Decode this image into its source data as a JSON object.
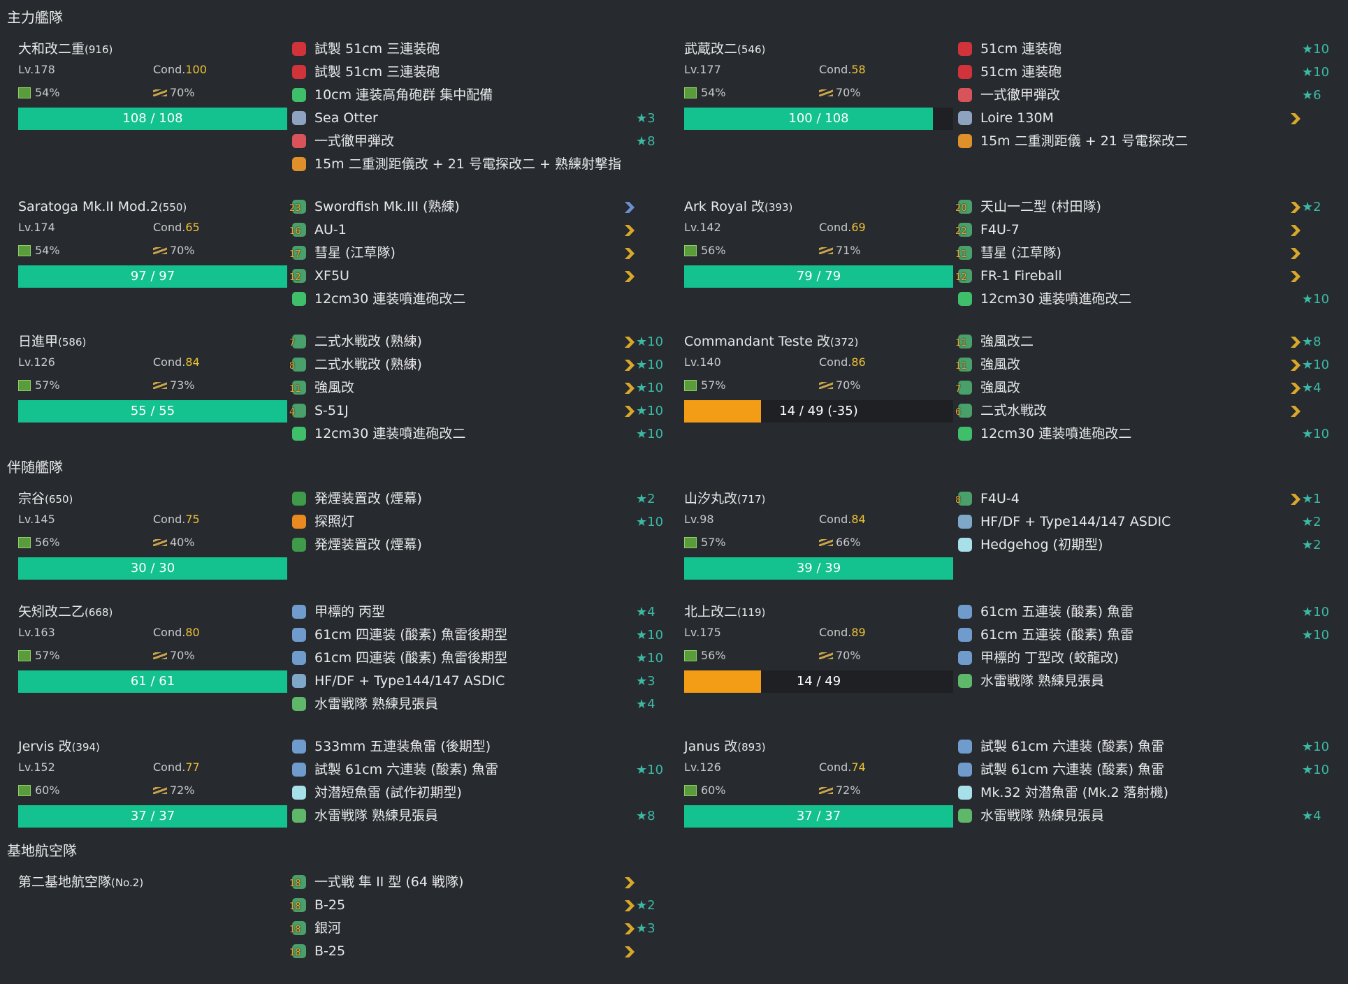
{
  "labels": {
    "cond": "Cond."
  },
  "sections": [
    {
      "title": "主力艦隊",
      "rows": [
        [
          {
            "name": "大和改二重",
            "id": "(916)",
            "lv": "Lv.178",
            "cond": 100,
            "fuel": "54%",
            "ammo": "70%",
            "hp": "108 / 108",
            "hp_now": 108,
            "hp_max": 108,
            "equips": [
              {
                "name": "試製 51cm 三連装砲",
                "icon_color": "#d0343a"
              },
              {
                "name": "試製 51cm 三連装砲",
                "icon_color": "#d0343a"
              },
              {
                "name": "10cm 連装高角砲群 集中配備",
                "icon_color": "#3fbf6a"
              },
              {
                "name": "Sea Otter",
                "star": "★3",
                "icon_color": "#8ea3c0"
              },
              {
                "name": "一式徹甲弾改",
                "star": "★8",
                "icon_color": "#d8545a"
              },
              {
                "name": "15m 二重測距儀改 + 21 号電探改二 + 熟練射撃指",
                "icon_color": "#e0902a"
              }
            ]
          },
          {
            "name": "武蔵改二",
            "id": "(546)",
            "lv": "Lv.177",
            "cond": 58,
            "fuel": "54%",
            "ammo": "70%",
            "hp": "100 / 108",
            "hp_now": 100,
            "hp_max": 108,
            "equips": [
              {
                "name": "51cm 連装砲",
                "star": "★10",
                "icon_color": "#d0343a"
              },
              {
                "name": "51cm 連装砲",
                "star": "★10",
                "icon_color": "#d0343a"
              },
              {
                "name": "一式徹甲弾改",
                "star": "★6",
                "icon_color": "#d8545a"
              },
              {
                "name": "Loire 130M",
                "icon_color": "#8ea3c0",
                "proficiency_color": "#d9a82a"
              },
              {
                "name": "15m 二重測距儀 + 21 号電探改二",
                "icon_color": "#e0902a"
              }
            ]
          }
        ],
        [
          {
            "name": "Saratoga Mk.II Mod.2",
            "id": "(550)",
            "lv": "Lv.174",
            "cond": 65,
            "fuel": "54%",
            "ammo": "70%",
            "hp": "97 / 97",
            "hp_now": 97,
            "hp_max": 97,
            "equips": [
              {
                "name": "Swordfish Mk.III (熟練)",
                "slot": 23,
                "icon_color": "#4aa06a",
                "proficiency_color": "#6d8fd0"
              },
              {
                "name": "AU-1",
                "slot": 16,
                "icon_color": "#4aa06a",
                "proficiency_color": "#d9a82a"
              },
              {
                "name": "彗星 (江草隊)",
                "slot": 17,
                "icon_color": "#4aa06a",
                "proficiency_color": "#d9a82a"
              },
              {
                "name": "XF5U",
                "slot": 12,
                "icon_color": "#4aa06a",
                "proficiency_color": "#d9a82a"
              },
              {
                "name": "12cm30 連装噴進砲改二",
                "icon_color": "#3fbf6a"
              }
            ]
          },
          {
            "name": "Ark Royal 改",
            "id": "(393)",
            "lv": "Lv.142",
            "cond": 69,
            "fuel": "56%",
            "ammo": "71%",
            "hp": "79 / 79",
            "hp_now": 79,
            "hp_max": 79,
            "equips": [
              {
                "name": "天山一二型 (村田隊)",
                "slot": 20,
                "star": "★2",
                "icon_color": "#4aa06a",
                "proficiency_color": "#d9a82a"
              },
              {
                "name": "F4U-7",
                "slot": 22,
                "icon_color": "#4aa06a",
                "proficiency_color": "#d9a82a"
              },
              {
                "name": "彗星 (江草隊)",
                "slot": 11,
                "icon_color": "#4aa06a",
                "proficiency_color": "#d9a82a"
              },
              {
                "name": "FR-1 Fireball",
                "slot": 12,
                "icon_color": "#4aa06a",
                "proficiency_color": "#d9a82a"
              },
              {
                "name": "12cm30 連装噴進砲改二",
                "star": "★10",
                "icon_color": "#3fbf6a"
              }
            ]
          }
        ],
        [
          {
            "name": "日進甲",
            "id": "(586)",
            "lv": "Lv.126",
            "cond": 84,
            "fuel": "57%",
            "ammo": "73%",
            "hp": "55 / 55",
            "hp_now": 55,
            "hp_max": 55,
            "equips": [
              {
                "name": "二式水戦改 (熟練)",
                "slot": 7,
                "star": "★10",
                "icon_color": "#4aa06a",
                "proficiency_color": "#d9a82a"
              },
              {
                "name": "二式水戦改 (熟練)",
                "slot": 8,
                "star": "★10",
                "icon_color": "#4aa06a",
                "proficiency_color": "#d9a82a"
              },
              {
                "name": "強風改",
                "slot": 11,
                "star": "★10",
                "icon_color": "#4aa06a",
                "proficiency_color": "#d9a82a"
              },
              {
                "name": "S-51J",
                "slot": 4,
                "star": "★10",
                "icon_color": "#4aa06a",
                "proficiency_color": "#d9a82a"
              },
              {
                "name": "12cm30 連装噴進砲改二",
                "star": "★10",
                "icon_color": "#3fbf6a"
              }
            ]
          },
          {
            "name": "Commandant Teste 改",
            "id": "(372)",
            "lv": "Lv.140",
            "cond": 86,
            "fuel": "57%",
            "ammo": "70%",
            "hp": "14 / 49 (-35)",
            "hp_now": 14,
            "hp_max": 49,
            "equips": [
              {
                "name": "強風改二",
                "slot": 11,
                "star": "★8",
                "icon_color": "#4aa06a",
                "proficiency_color": "#d9a82a"
              },
              {
                "name": "強風改",
                "slot": 11,
                "star": "★10",
                "icon_color": "#4aa06a",
                "proficiency_color": "#d9a82a"
              },
              {
                "name": "強風改",
                "slot": 7,
                "star": "★4",
                "icon_color": "#4aa06a",
                "proficiency_color": "#d9a82a"
              },
              {
                "name": "二式水戦改",
                "slot": 6,
                "icon_color": "#4aa06a",
                "proficiency_color": "#d9a82a"
              },
              {
                "name": "12cm30 連装噴進砲改二",
                "star": "★10",
                "icon_color": "#3fbf6a"
              }
            ]
          }
        ]
      ]
    },
    {
      "title": "伴随艦隊",
      "rows": [
        [
          {
            "name": "宗谷",
            "id": "(650)",
            "lv": "Lv.145",
            "cond": 75,
            "fuel": "56%",
            "ammo": "40%",
            "hp": "30 / 30",
            "hp_now": 30,
            "hp_max": 30,
            "equips": [
              {
                "name": "発煙装置改 (煙幕)",
                "star": "★2",
                "icon_color": "#3f9a4a"
              },
              {
                "name": "探照灯",
                "star": "★10",
                "icon_color": "#e88a20"
              },
              {
                "name": "発煙装置改 (煙幕)",
                "icon_color": "#3f9a4a"
              }
            ]
          },
          {
            "name": "山汐丸改",
            "id": "(717)",
            "lv": "Lv.98",
            "cond": 84,
            "fuel": "57%",
            "ammo": "66%",
            "hp": "39 / 39",
            "hp_now": 39,
            "hp_max": 39,
            "equips": [
              {
                "name": "F4U-4",
                "slot": 8,
                "star": "★1",
                "icon_color": "#4aa06a",
                "proficiency_color": "#d9a82a"
              },
              {
                "name": "HF/DF + Type144/147 ASDIC",
                "star": "★2",
                "icon_color": "#7fa8c8"
              },
              {
                "name": "Hedgehog (初期型)",
                "star": "★2",
                "icon_color": "#a8e0ea"
              }
            ]
          }
        ],
        [
          {
            "name": "矢矧改二乙",
            "id": "(668)",
            "lv": "Lv.163",
            "cond": 80,
            "fuel": "57%",
            "ammo": "70%",
            "hp": "61 / 61",
            "hp_now": 61,
            "hp_max": 61,
            "equips": [
              {
                "name": "甲標的 丙型",
                "star": "★4",
                "icon_color": "#6f9ccc"
              },
              {
                "name": "61cm 四連装 (酸素) 魚雷後期型",
                "star": "★10",
                "icon_color": "#6f9ccc"
              },
              {
                "name": "61cm 四連装 (酸素) 魚雷後期型",
                "star": "★10",
                "icon_color": "#6f9ccc"
              },
              {
                "name": "HF/DF + Type144/147 ASDIC",
                "star": "★3",
                "icon_color": "#7fa8c8"
              },
              {
                "name": "水雷戦隊 熟練見張員",
                "star": "★4",
                "icon_color": "#5fb86a"
              }
            ]
          },
          {
            "name": "北上改二",
            "id": "(119)",
            "lv": "Lv.175",
            "cond": 89,
            "fuel": "56%",
            "ammo": "70%",
            "hp": "14 / 49",
            "hp_now": 14,
            "hp_max": 49,
            "equips": [
              {
                "name": "61cm 五連装 (酸素) 魚雷",
                "star": "★10",
                "icon_color": "#6f9ccc"
              },
              {
                "name": "61cm 五連装 (酸素) 魚雷",
                "star": "★10",
                "icon_color": "#6f9ccc"
              },
              {
                "name": "甲標的 丁型改 (蛟龍改)",
                "icon_color": "#6f9ccc"
              },
              {
                "name": "水雷戦隊 熟練見張員",
                "icon_color": "#5fb86a"
              }
            ]
          }
        ],
        [
          {
            "name": "Jervis 改",
            "id": "(394)",
            "lv": "Lv.152",
            "cond": 77,
            "fuel": "60%",
            "ammo": "72%",
            "hp": "37 / 37",
            "hp_now": 37,
            "hp_max": 37,
            "equips": [
              {
                "name": "533mm 五連装魚雷 (後期型)",
                "icon_color": "#6f9ccc"
              },
              {
                "name": "試製 61cm 六連装 (酸素) 魚雷",
                "star": "★10",
                "icon_color": "#6f9ccc"
              },
              {
                "name": "対潜短魚雷 (試作初期型)",
                "icon_color": "#a8e0ea"
              },
              {
                "name": "水雷戦隊 熟練見張員",
                "star": "★8",
                "icon_color": "#5fb86a"
              }
            ]
          },
          {
            "name": "Janus 改",
            "id": "(893)",
            "lv": "Lv.126",
            "cond": 74,
            "fuel": "60%",
            "ammo": "72%",
            "hp": "37 / 37",
            "hp_now": 37,
            "hp_max": 37,
            "equips": [
              {
                "name": "試製 61cm 六連装 (酸素) 魚雷",
                "star": "★10",
                "icon_color": "#6f9ccc"
              },
              {
                "name": "試製 61cm 六連装 (酸素) 魚雷",
                "star": "★10",
                "icon_color": "#6f9ccc"
              },
              {
                "name": "Mk.32 対潜魚雷 (Mk.2 落射機)",
                "icon_color": "#a8e0ea"
              },
              {
                "name": "水雷戦隊 熟練見張員",
                "star": "★4",
                "icon_color": "#5fb86a"
              }
            ]
          }
        ]
      ]
    },
    {
      "title": "基地航空隊",
      "rows": [
        [
          {
            "name": "第二基地航空隊",
            "id": "(No.2)",
            "equips": [
              {
                "name": "一式戦 隼 II 型 (64 戦隊)",
                "slot": 18,
                "icon_color": "#4aa06a",
                "proficiency_color": "#d9a82a"
              },
              {
                "name": "B-25",
                "slot": 18,
                "star": "★2",
                "icon_color": "#4aa06a",
                "proficiency_color": "#d9a82a"
              },
              {
                "name": "銀河",
                "slot": 18,
                "star": "★3",
                "icon_color": "#4aa06a",
                "proficiency_color": "#d9a82a"
              },
              {
                "name": "B-25",
                "slot": 18,
                "icon_color": "#4aa06a",
                "proficiency_color": "#d9a82a"
              }
            ]
          }
        ]
      ]
    }
  ]
}
